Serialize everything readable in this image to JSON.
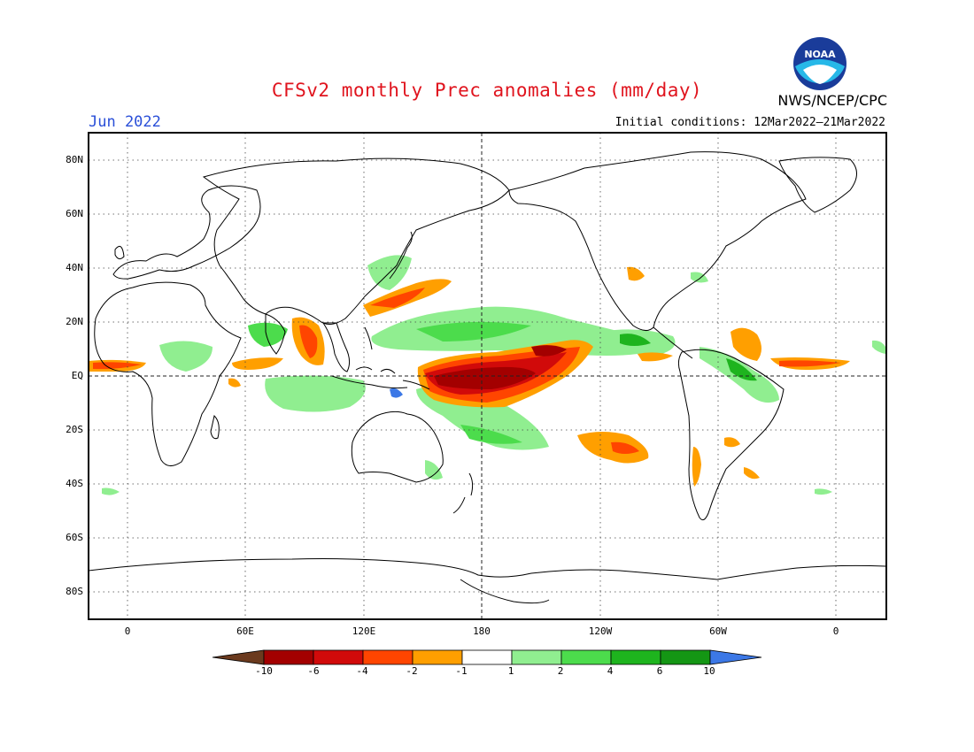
{
  "title": "CFSv2 monthly Prec anomalies (mm/day)",
  "month": "Jun 2022",
  "agency": "NWS/NCEP/CPC",
  "logo_text": "NOAA",
  "initial_conditions": "Initial conditions: 12Mar2022–21Mar2022",
  "lat_labels": [
    "80N",
    "60N",
    "40N",
    "20N",
    "EQ",
    "20S",
    "40S",
    "60S",
    "80S"
  ],
  "lon_labels": [
    "0",
    "60E",
    "120E",
    "180",
    "120W",
    "60W",
    "0"
  ],
  "colorbar": {
    "labels": [
      "-10",
      "-6",
      "-4",
      "-2",
      "-1",
      "1",
      "2",
      "4",
      "6",
      "10"
    ],
    "colors": [
      "#6b3a1e",
      "#a30000",
      "#d10a0a",
      "#ff4500",
      "#ff9f00",
      "#ffffff",
      "#90ee90",
      "#4cdc4c",
      "#1eb41e",
      "#149614",
      "#3c78e6"
    ]
  },
  "map": {
    "grid": "dotted",
    "reference_lines": [
      "equator",
      "dateline"
    ]
  }
}
